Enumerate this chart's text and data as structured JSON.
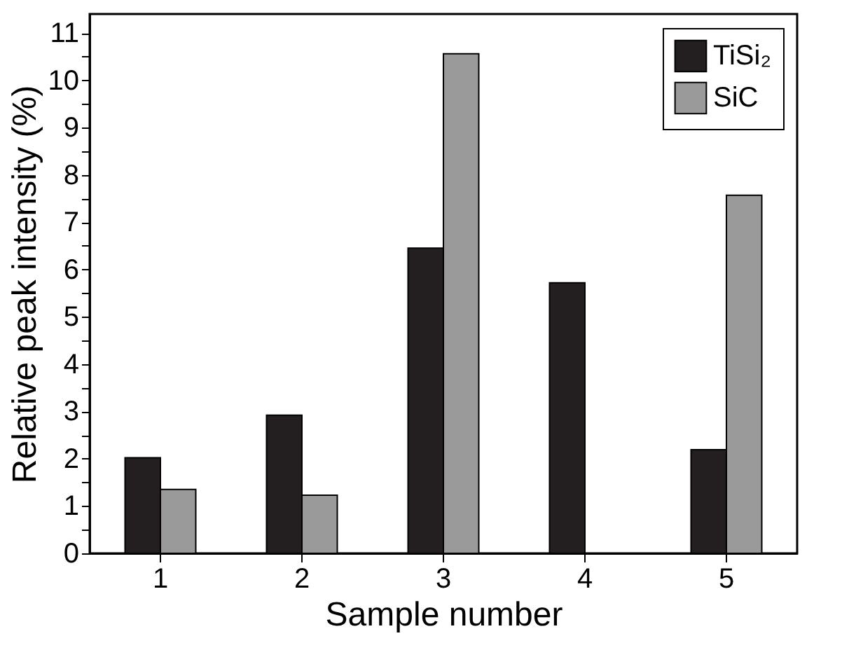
{
  "chart_data": {
    "type": "bar",
    "xlabel": "Sample number",
    "ylabel": "Relative peak intensity (%)",
    "categories": [
      "1",
      "2",
      "3",
      "4",
      "5"
    ],
    "series": [
      {
        "name": "TiSi₂",
        "color": "#231f20",
        "values": [
          2.02,
          2.92,
          6.45,
          5.72,
          2.19
        ]
      },
      {
        "name": "SiC",
        "color": "#9a9a9a",
        "values": [
          1.35,
          1.23,
          10.56,
          null,
          7.57
        ]
      }
    ],
    "ylim": [
      0,
      11.4
    ],
    "yticks": [
      0,
      {
        "value": 0.5,
        "label": null
      },
      1,
      {
        "value": 1.5,
        "label": null
      },
      2,
      {
        "value": 2.5,
        "label": null
      },
      3,
      {
        "value": 3.5,
        "label": null
      },
      4,
      {
        "value": 4.5,
        "label": null
      },
      5,
      {
        "value": 5.5,
        "label": null
      },
      6,
      {
        "value": 6.5,
        "label": null
      },
      7,
      {
        "value": 7.5,
        "label": null
      },
      8,
      {
        "value": 8.5,
        "label": null
      },
      9,
      {
        "value": 9.5,
        "label": null
      },
      10,
      {
        "value": 10.5,
        "label": null
      },
      11
    ],
    "grid": false,
    "legend": "top right"
  }
}
